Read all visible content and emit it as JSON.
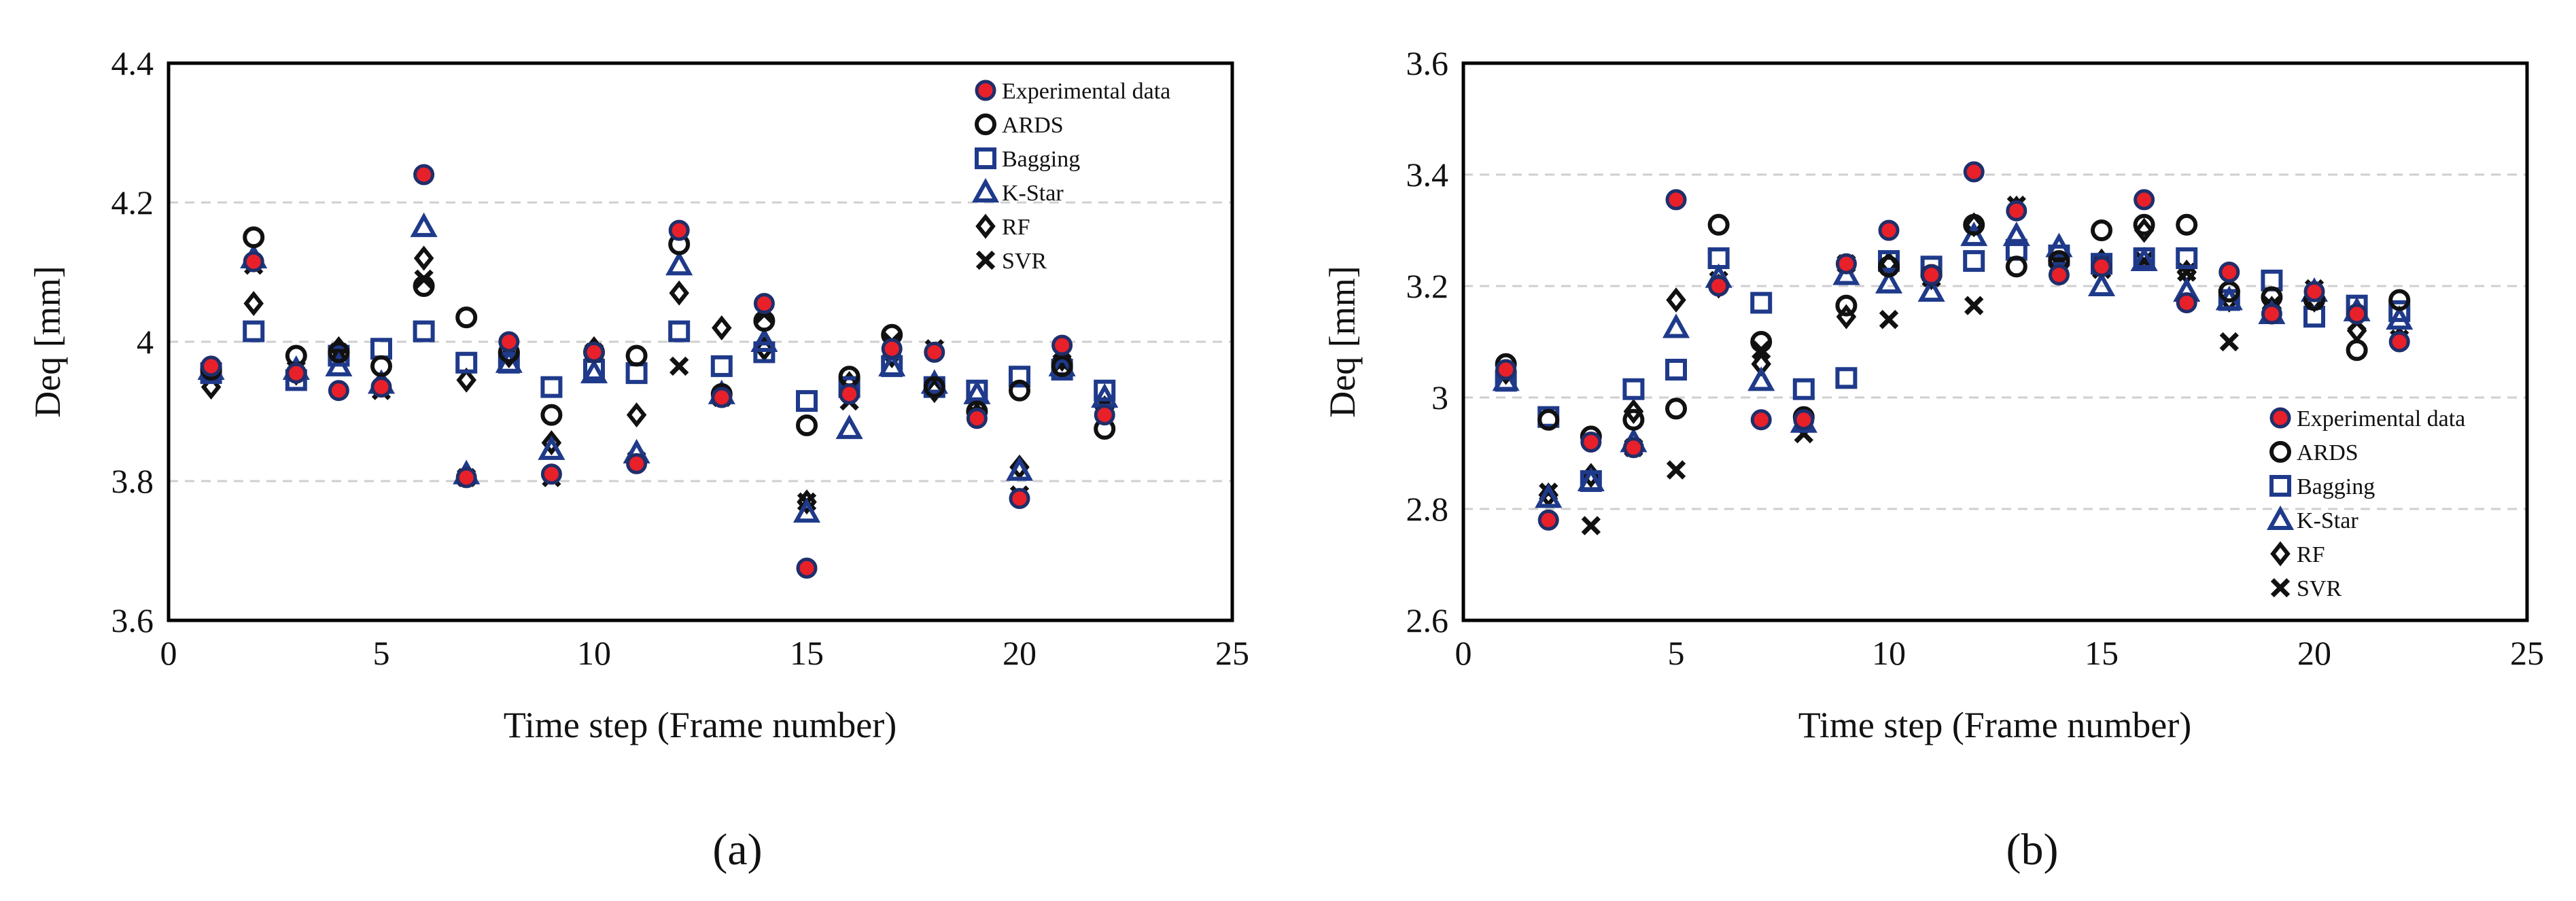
{
  "figure": {
    "panel_labels": [
      "(a)",
      "(b)"
    ]
  },
  "chart_data": [
    {
      "type": "scatter",
      "panel": "(a)",
      "title": "",
      "xlabel": "Time step (Frame number)",
      "ylabel": "Deq [mm]",
      "xlim": [
        0,
        25
      ],
      "ylim": [
        3.6,
        4.4
      ],
      "xticks": [
        0,
        5,
        10,
        15,
        20,
        25
      ],
      "xtick_labels": [
        "0",
        "5",
        "10",
        "15",
        "20",
        "25"
      ],
      "yticks": [
        3.6,
        3.8,
        4.0,
        4.2,
        4.4
      ],
      "ytick_labels": [
        "3.6",
        "3.8",
        "4",
        "4.2",
        "4.4"
      ],
      "grid": "horizontal dashed",
      "legend_position": "top-right",
      "x": [
        1,
        2,
        3,
        4,
        5,
        6,
        7,
        8,
        9,
        10,
        11,
        12,
        13,
        14,
        15,
        16,
        17,
        18,
        19,
        20,
        21,
        22
      ],
      "series": [
        {
          "name": "Experimental data",
          "marker": "filled-circle",
          "color": "#e8202a",
          "edge": "#1f2f6b",
          "values": [
            3.965,
            4.115,
            3.955,
            3.93,
            3.935,
            4.24,
            3.805,
            4.0,
            3.81,
            3.985,
            3.825,
            4.16,
            3.92,
            4.055,
            3.675,
            3.925,
            3.99,
            3.985,
            3.89,
            3.775,
            3.995,
            3.895
          ]
        },
        {
          "name": "ARDS",
          "marker": "open-circle",
          "color": "#111111",
          "values": [
            3.96,
            4.15,
            3.98,
            3.985,
            3.965,
            4.08,
            4.035,
            3.985,
            3.895,
            3.985,
            3.98,
            4.14,
            3.925,
            4.03,
            3.88,
            3.95,
            4.01,
            3.935,
            3.9,
            3.93,
            3.965,
            3.875
          ]
        },
        {
          "name": "Bagging",
          "marker": "open-square",
          "color": "#1f3a8a",
          "values": [
            3.955,
            4.015,
            3.945,
            3.98,
            3.99,
            4.015,
            3.97,
            3.97,
            3.935,
            3.96,
            3.955,
            4.015,
            3.965,
            3.985,
            3.915,
            3.935,
            3.965,
            3.935,
            3.93,
            3.95,
            3.96,
            3.93
          ]
        },
        {
          "name": "K-Star",
          "marker": "open-triangle",
          "color": "#1f3a8a",
          "values": [
            3.96,
            4.12,
            3.96,
            3.965,
            3.94,
            4.165,
            3.81,
            3.97,
            3.845,
            3.955,
            3.84,
            4.11,
            3.925,
            4.0,
            3.755,
            3.875,
            3.965,
            3.94,
            3.925,
            3.815,
            3.965,
            3.92
          ]
        },
        {
          "name": "RF",
          "marker": "open-diamond",
          "color": "#111111",
          "values": [
            3.935,
            4.055,
            3.955,
            3.99,
            3.94,
            4.12,
            3.945,
            3.98,
            3.855,
            3.99,
            3.895,
            4.07,
            4.02,
            3.99,
            3.77,
            3.94,
            3.98,
            3.93,
            3.895,
            3.82,
            3.975,
            3.905
          ]
        },
        {
          "name": "SVR",
          "marker": "x",
          "color": "#111111",
          "values": [
            3.955,
            4.11,
            3.96,
            3.985,
            3.93,
            4.09,
            3.805,
            3.985,
            3.805,
            3.985,
            3.83,
            3.965,
            3.92,
            4.04,
            3.77,
            3.915,
            4.0,
            3.99,
            3.895,
            3.78,
            3.97,
            3.91
          ]
        }
      ]
    },
    {
      "type": "scatter",
      "panel": "(b)",
      "title": "",
      "xlabel": "Time step (Frame number)",
      "ylabel": "Deq [mm]",
      "xlim": [
        0,
        25
      ],
      "ylim": [
        2.6,
        3.6
      ],
      "xticks": [
        0,
        5,
        10,
        15,
        20,
        25
      ],
      "xtick_labels": [
        "0",
        "5",
        "10",
        "15",
        "20",
        "25"
      ],
      "yticks": [
        2.6,
        2.8,
        3.0,
        3.2,
        3.4,
        3.6
      ],
      "ytick_labels": [
        "2.6",
        "2.8",
        "3",
        "3.2",
        "3.4",
        "3.6"
      ],
      "grid": "horizontal dashed",
      "legend_position": "bottom-right",
      "x": [
        1,
        2,
        3,
        4,
        5,
        6,
        7,
        8,
        9,
        10,
        11,
        12,
        13,
        14,
        15,
        16,
        17,
        18,
        19,
        20,
        21,
        22
      ],
      "series": [
        {
          "name": "Experimental data",
          "marker": "filled-circle",
          "color": "#e8202a",
          "edge": "#1f2f6b",
          "values": [
            3.05,
            2.78,
            2.92,
            2.91,
            3.355,
            3.2,
            2.96,
            2.96,
            3.24,
            3.3,
            3.22,
            3.405,
            3.335,
            3.22,
            3.235,
            3.355,
            3.17,
            3.225,
            3.15,
            3.19,
            3.15,
            3.1
          ]
        },
        {
          "name": "ARDS",
          "marker": "open-circle",
          "color": "#111111",
          "values": [
            3.06,
            2.96,
            2.93,
            2.96,
            2.98,
            3.31,
            3.1,
            2.965,
            3.165,
            3.235,
            3.22,
            3.31,
            3.235,
            3.245,
            3.3,
            3.31,
            3.31,
            3.19,
            3.18,
            3.175,
            3.085,
            3.175
          ]
        },
        {
          "name": "Bagging",
          "marker": "open-square",
          "color": "#1f3a8a",
          "values": [
            3.03,
            2.965,
            2.85,
            3.015,
            3.05,
            3.25,
            3.17,
            3.015,
            3.035,
            3.245,
            3.235,
            3.245,
            3.265,
            3.255,
            3.24,
            3.25,
            3.25,
            3.175,
            3.21,
            3.145,
            3.165,
            3.155
          ]
        },
        {
          "name": "K-Star",
          "marker": "open-triangle",
          "color": "#1f3a8a",
          "values": [
            3.03,
            2.82,
            2.85,
            2.92,
            3.125,
            3.215,
            3.03,
            2.955,
            3.22,
            3.205,
            3.19,
            3.29,
            3.29,
            3.27,
            3.2,
            3.245,
            3.19,
            3.175,
            3.15,
            3.19,
            3.155,
            3.14
          ]
        },
        {
          "name": "RF",
          "marker": "open-diamond",
          "color": "#111111",
          "values": [
            3.045,
            2.825,
            2.86,
            2.975,
            3.175,
            3.2,
            3.06,
            2.955,
            3.145,
            3.24,
            3.215,
            3.31,
            3.34,
            3.235,
            3.245,
            3.3,
            3.225,
            3.175,
            3.16,
            3.175,
            3.12,
            3.105
          ]
        },
        {
          "name": "SVR",
          "marker": "x",
          "color": "#111111",
          "values": [
            3.05,
            2.83,
            2.77,
            2.91,
            2.87,
            3.21,
            3.085,
            2.935,
            3.24,
            3.14,
            3.215,
            3.165,
            3.345,
            3.24,
            3.23,
            3.245,
            3.225,
            3.1,
            3.165,
            3.195,
            3.135,
            3.105
          ]
        }
      ]
    }
  ]
}
